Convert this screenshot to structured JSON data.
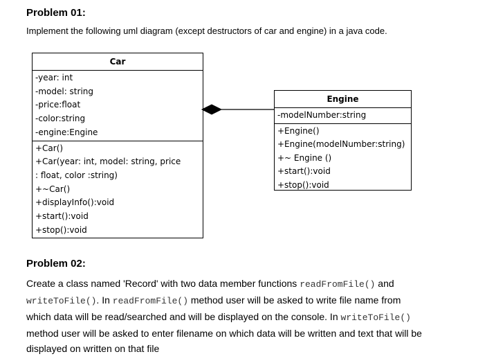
{
  "problem1": {
    "heading": "Problem 01:",
    "instruction": "Implement the following uml diagram (except destructors of car and engine) in a java code."
  },
  "uml": {
    "car": {
      "name": "Car",
      "attributes": [
        "-year: int",
        "-model: string",
        "-price:float",
        "-color:string",
        "-engine:Engine"
      ],
      "methods": [
        "+Car()",
        "+Car(year: int, model: string, price",
        ": float, color :string)",
        "+~Car()",
        "+displayInfo():void",
        "+start():void",
        "+stop():void"
      ]
    },
    "engine": {
      "name": "Engine",
      "attributes": [
        "-modelNumber:string"
      ],
      "methods": [
        "+Engine()",
        "+Engine(modelNumber:string)",
        "+~ Engine ()",
        "+start():void",
        "+stop():void"
      ]
    },
    "relationship": "composition"
  },
  "problem2": {
    "heading": "Problem 02:",
    "lines": [
      [
        "Create a class named 'Record' with two data member functions ",
        "readFromFile()",
        " and"
      ],
      [
        "",
        "writeToFile()",
        ". In ",
        "readFromFile()",
        " method user will be asked to write file name from"
      ],
      [
        "which data will be read/searched and will be displayed on the console.  In ",
        "writeToFile()"
      ],
      [
        "method user will be asked to enter filename on which data will be written and text that will be"
      ],
      [
        "displayed on written on that file"
      ]
    ]
  }
}
